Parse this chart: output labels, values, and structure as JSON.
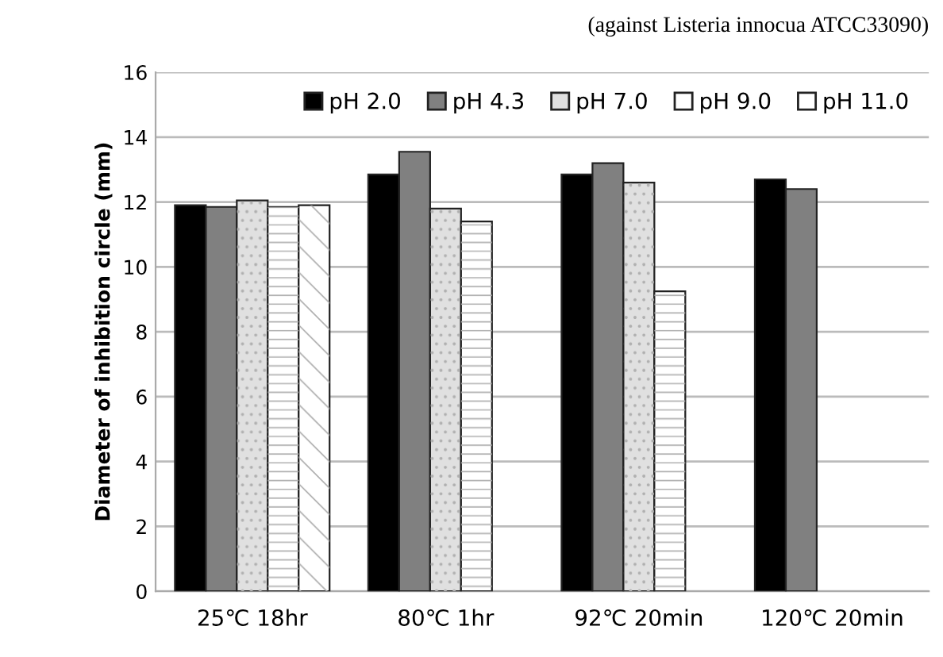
{
  "chart_data": {
    "type": "bar",
    "categories": [
      "25℃ 18hr",
      "80℃ 1hr",
      "92℃ 20min",
      "120℃ 20min"
    ],
    "series": [
      {
        "name": "pH 2.0",
        "color": "#000000",
        "values": [
          11.9,
          12.85,
          12.85,
          12.7
        ]
      },
      {
        "name": "pH 4.3",
        "color": "#808080",
        "values": [
          11.85,
          13.55,
          13.2,
          12.4
        ]
      },
      {
        "name": "pH 7.0",
        "color": "#e0e0e0",
        "values": [
          12.05,
          11.8,
          12.6,
          null
        ]
      },
      {
        "name": "pH 9.0",
        "color": "#ffffff",
        "values": [
          11.85,
          11.4,
          9.25,
          null
        ]
      },
      {
        "name": "pH 11.0",
        "color": "#ffffff",
        "values": [
          11.9,
          null,
          null,
          null
        ]
      }
    ],
    "ylabel": "Diameter of inhibition circle (mm)",
    "annotations": [
      "(against Listeria innocua ATCC33090)"
    ],
    "ylim": [
      0,
      16
    ],
    "yticks": [
      0,
      2,
      4,
      6,
      8,
      10,
      12,
      14,
      16
    ],
    "grid": "y",
    "legend": "top right"
  }
}
